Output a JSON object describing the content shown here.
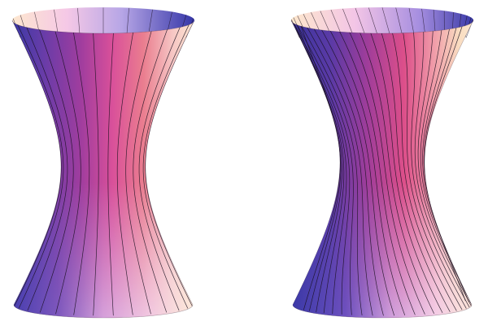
{
  "figure": {
    "panels": [
      {
        "name": "left-hyperboloid",
        "twist_degrees": 0
      },
      {
        "name": "right-hyperboloid",
        "twist_degrees": 50
      }
    ],
    "colors": {
      "background": "#ffffff",
      "ruling_line": "#1a1020",
      "shade_dark_blue": "#3a3aa0",
      "shade_purple": "#8a3a9a",
      "shade_magenta": "#c04a90",
      "shade_salmon": "#e88080",
      "shade_pale_pink": "#f4d0e8",
      "shade_cream": "#fce8d0"
    }
  }
}
